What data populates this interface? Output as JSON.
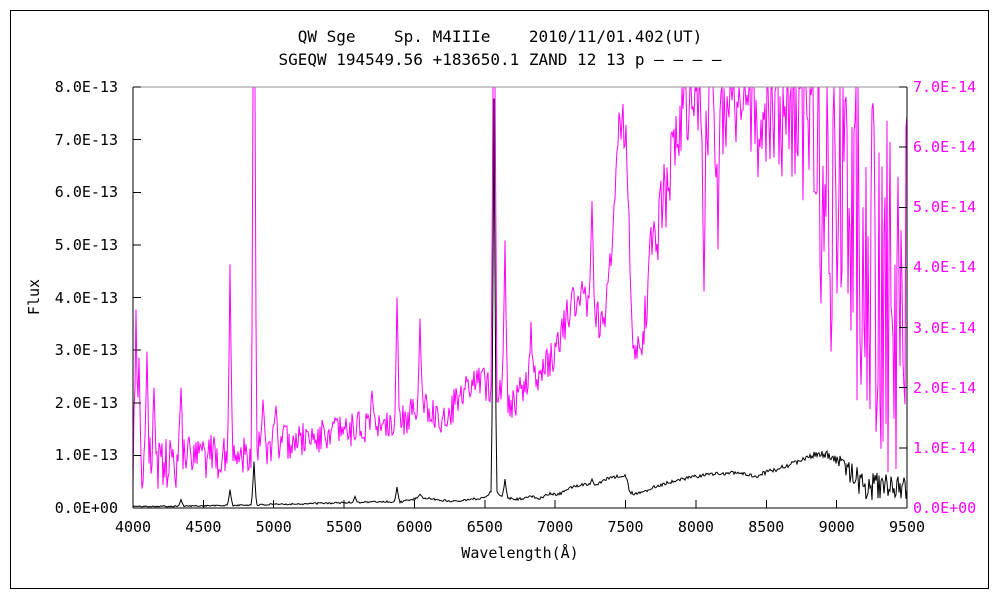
{
  "chart_data": {
    "type": "line",
    "title": "QW Sge    Sp. M4IIIe    2010/11/01.402(UT)",
    "subtitle": "SGEQW 194549.56 +183650.1 ZAND 12 13 p – – – –",
    "x_axis": {
      "label": "Wavelength(Å)",
      "min": 4000,
      "max": 9500,
      "tick_step": 500,
      "tick_labels": [
        "4000",
        "4500",
        "5000",
        "5500",
        "6000",
        "6500",
        "7000",
        "7500",
        "8000",
        "8500",
        "9000",
        "9500"
      ]
    },
    "y_axis_left": {
      "label": "Flux",
      "min": 0,
      "max": 8e-13,
      "value_scale": "1e-13",
      "color": "#000000",
      "tick_labels": [
        "0.0E+00",
        "1.0E-13",
        "2.0E-13",
        "3.0E-13",
        "4.0E-13",
        "5.0E-13",
        "6.0E-13",
        "7.0E-13",
        "8.0E-13"
      ]
    },
    "y_axis_right": {
      "label": "",
      "min": 0,
      "max": 7e-14,
      "value_scale": "1e-14",
      "color": "#ff00ff",
      "tick_labels": [
        "0.0E+00",
        "1.0E-14",
        "2.0E-14",
        "3.0E-14",
        "4.0E-14",
        "5.0E-14",
        "6.0E-14",
        "7.0E-14"
      ]
    },
    "frame": {
      "background": "#ffffff",
      "outer_border_color": "#000000",
      "axis_color": "#000000",
      "top_border_color": "#909090"
    },
    "grid": false,
    "legend": "none",
    "series_units_note": "anchors and features are [wavelength_angstrom, flux_in_value_scale_units]; curves are noisy spectra reconstructed from baseline + noise envelope + line features, clipped to axis range",
    "series": [
      {
        "name": "spectrum on right axis (magenta, ×1e-14)",
        "color": "#ff00ff",
        "axis": "right",
        "axis_max": 7.0,
        "clip_min": 0.04,
        "clip_max": 7.0,
        "noise_seed": 202,
        "baseline_anchors": [
          [
            4000,
            0.75
          ],
          [
            4250,
            0.7
          ],
          [
            4450,
            0.8
          ],
          [
            4650,
            0.85
          ],
          [
            4861,
            0.95
          ],
          [
            5000,
            1.05
          ],
          [
            5250,
            1.15
          ],
          [
            5450,
            1.25
          ],
          [
            5650,
            1.35
          ],
          [
            5850,
            1.45
          ],
          [
            6000,
            1.55
          ],
          [
            6080,
            1.75
          ],
          [
            6180,
            1.45
          ],
          [
            6300,
            1.75
          ],
          [
            6420,
            2.15
          ],
          [
            6500,
            2.05
          ],
          [
            6600,
            1.95
          ],
          [
            6700,
            1.75
          ],
          [
            6800,
            2.05
          ],
          [
            6900,
            2.25
          ],
          [
            7000,
            2.6
          ],
          [
            7100,
            3.3
          ],
          [
            7180,
            3.55
          ],
          [
            7260,
            3.45
          ],
          [
            7330,
            2.95
          ],
          [
            7400,
            4.2
          ],
          [
            7460,
            6.6
          ],
          [
            7500,
            6.2
          ],
          [
            7540,
            3.4
          ],
          [
            7580,
            2.5
          ],
          [
            7620,
            2.7
          ],
          [
            7660,
            3.9
          ],
          [
            7700,
            4.4
          ],
          [
            7760,
            5.0
          ],
          [
            7820,
            5.6
          ],
          [
            7880,
            6.3
          ],
          [
            7950,
            6.85
          ],
          [
            8100,
            6.9
          ],
          [
            8300,
            6.9
          ],
          [
            8500,
            6.9
          ],
          [
            8700,
            6.85
          ],
          [
            8850,
            6.6
          ],
          [
            8950,
            6.2
          ],
          [
            9050,
            5.2
          ],
          [
            9150,
            4.0
          ],
          [
            9250,
            3.5
          ],
          [
            9350,
            3.5
          ],
          [
            9500,
            3.6
          ]
        ],
        "noise_amplitude_anchors": [
          [
            4000,
            0.55
          ],
          [
            4300,
            0.45
          ],
          [
            4600,
            0.38
          ],
          [
            4861,
            0.33
          ],
          [
            5200,
            0.28
          ],
          [
            5600,
            0.28
          ],
          [
            6000,
            0.3
          ],
          [
            6400,
            0.27
          ],
          [
            6800,
            0.28
          ],
          [
            7200,
            0.32
          ],
          [
            7450,
            0.4
          ],
          [
            7650,
            0.55
          ],
          [
            7850,
            0.65
          ],
          [
            7950,
            0.75
          ],
          [
            8100,
            1.3
          ],
          [
            8250,
            0.9
          ],
          [
            8400,
            1.0
          ],
          [
            8550,
            1.3
          ],
          [
            8700,
            1.6
          ],
          [
            8850,
            2.0
          ],
          [
            8950,
            2.4
          ],
          [
            9040,
            2.8
          ],
          [
            9120,
            3.3
          ],
          [
            9500,
            3.3
          ]
        ],
        "spectral_features": [
          [
            4020,
            3.3
          ],
          [
            4046,
            2.5
          ],
          [
            4102,
            2.6
          ],
          [
            4150,
            2.0
          ],
          [
            4340,
            2.0
          ],
          [
            4686,
            4.05
          ],
          [
            4861,
            13.0
          ],
          [
            4922,
            1.8
          ],
          [
            5016,
            1.7
          ],
          [
            5700,
            1.95
          ],
          [
            5876,
            3.5
          ],
          [
            6040,
            3.15
          ],
          [
            6563,
            15.0
          ],
          [
            6640,
            4.45
          ],
          [
            6830,
            3.1
          ],
          [
            7262,
            5.1
          ],
          [
            8060,
            3.6
          ],
          [
            8160,
            4.3
          ],
          [
            8440,
            5.5
          ],
          [
            8890,
            3.4
          ],
          [
            8960,
            2.6
          ]
        ]
      },
      {
        "name": "spectrum on left axis (black, ×1e-13)",
        "color": "#000000",
        "axis": "left",
        "axis_max": 8.0,
        "clip_min": 0.005,
        "clip_max": 8.0,
        "noise_seed": 101,
        "baseline_anchors": [
          [
            4000,
            0.03
          ],
          [
            4300,
            0.035
          ],
          [
            4600,
            0.045
          ],
          [
            4900,
            0.06
          ],
          [
            5200,
            0.08
          ],
          [
            5500,
            0.1
          ],
          [
            5750,
            0.12
          ],
          [
            5900,
            0.115
          ],
          [
            6050,
            0.2
          ],
          [
            6150,
            0.16
          ],
          [
            6250,
            0.13
          ],
          [
            6400,
            0.16
          ],
          [
            6500,
            0.2
          ],
          [
            6540,
            0.3
          ],
          [
            6563,
            0.42
          ],
          [
            6590,
            0.28
          ],
          [
            6650,
            0.2
          ],
          [
            6720,
            0.17
          ],
          [
            6800,
            0.19
          ],
          [
            6830,
            0.23
          ],
          [
            6880,
            0.18
          ],
          [
            6960,
            0.27
          ],
          [
            7020,
            0.25
          ],
          [
            7100,
            0.38
          ],
          [
            7200,
            0.45
          ],
          [
            7300,
            0.46
          ],
          [
            7360,
            0.55
          ],
          [
            7480,
            0.62
          ],
          [
            7505,
            0.6
          ],
          [
            7530,
            0.3
          ],
          [
            7560,
            0.26
          ],
          [
            7620,
            0.3
          ],
          [
            7700,
            0.4
          ],
          [
            7800,
            0.48
          ],
          [
            7900,
            0.55
          ],
          [
            8000,
            0.6
          ],
          [
            8100,
            0.64
          ],
          [
            8200,
            0.66
          ],
          [
            8300,
            0.68
          ],
          [
            8380,
            0.62
          ],
          [
            8430,
            0.57
          ],
          [
            8470,
            0.65
          ],
          [
            8550,
            0.72
          ],
          [
            8650,
            0.8
          ],
          [
            8750,
            0.92
          ],
          [
            8850,
            1.02
          ],
          [
            8950,
            1.0
          ],
          [
            9000,
            0.92
          ],
          [
            9060,
            0.8
          ],
          [
            9120,
            0.6
          ],
          [
            9180,
            0.45
          ],
          [
            9250,
            0.38
          ],
          [
            9320,
            0.42
          ],
          [
            9400,
            0.35
          ],
          [
            9500,
            0.42
          ]
        ],
        "noise_amplitude_anchors": [
          [
            4000,
            0.012
          ],
          [
            5000,
            0.015
          ],
          [
            6000,
            0.02
          ],
          [
            6800,
            0.025
          ],
          [
            7500,
            0.03
          ],
          [
            8300,
            0.035
          ],
          [
            8800,
            0.05
          ],
          [
            9000,
            0.1
          ],
          [
            9100,
            0.22
          ],
          [
            9250,
            0.28
          ],
          [
            9400,
            0.25
          ],
          [
            9500,
            0.25
          ]
        ],
        "spectral_features": [
          [
            4340,
            0.16
          ],
          [
            4686,
            0.35
          ],
          [
            4861,
            0.88
          ],
          [
            5577,
            0.22
          ],
          [
            5876,
            0.4
          ],
          [
            6040,
            0.26
          ],
          [
            6563,
            7.78
          ],
          [
            6640,
            0.55
          ],
          [
            7262,
            0.55
          ]
        ]
      }
    ]
  }
}
